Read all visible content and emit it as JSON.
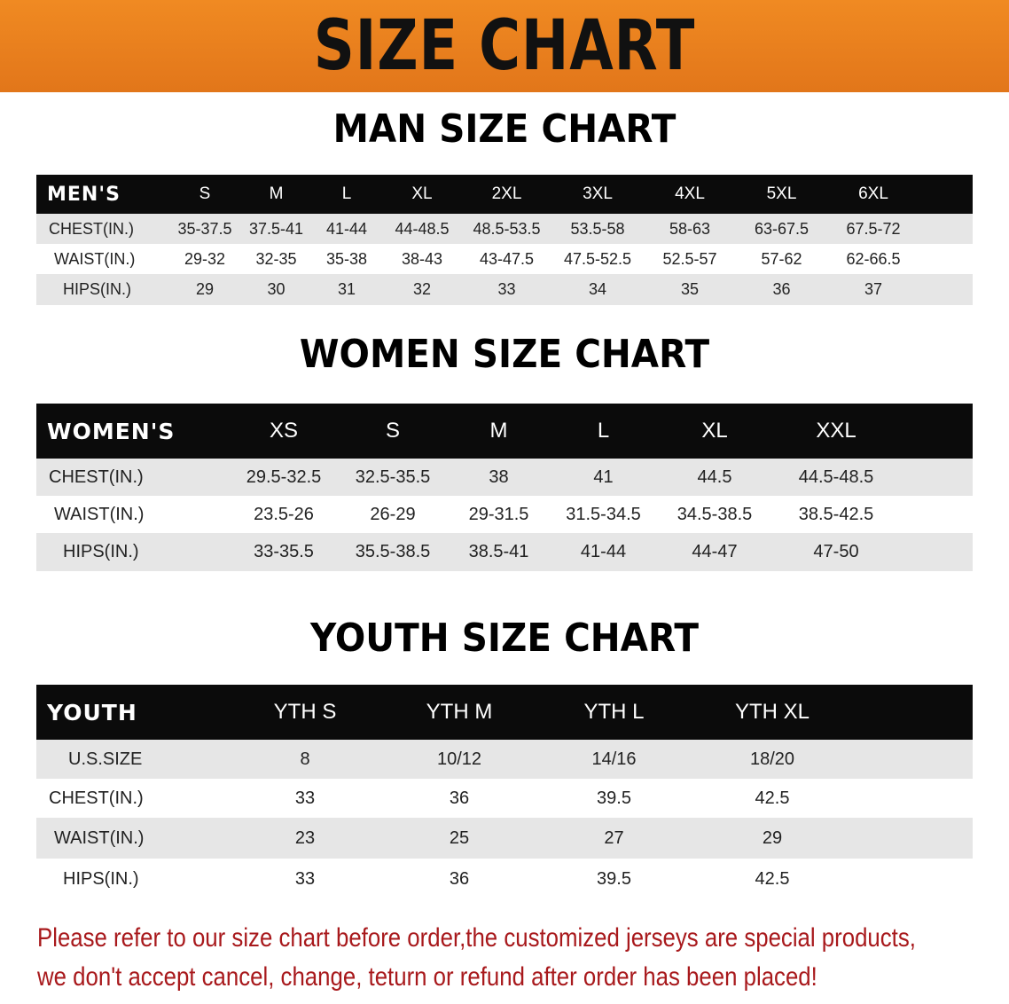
{
  "banner_title": "SIZE CHART",
  "men": {
    "title": "MAN SIZE CHART",
    "headers": [
      "MEN'S",
      "S",
      "M",
      "L",
      "XL",
      "2XL",
      "3XL",
      "4XL",
      "5XL",
      "6XL"
    ],
    "rows": [
      [
        "CHEST(IN.)",
        "35-37.5",
        "37.5-41",
        "41-44",
        "44-48.5",
        "48.5-53.5",
        "53.5-58",
        "58-63",
        "63-67.5",
        "67.5-72"
      ],
      [
        "WAIST(IN.)",
        "29-32",
        "32-35",
        "35-38",
        "38-43",
        "43-47.5",
        "47.5-52.5",
        "52.5-57",
        "57-62",
        "62-66.5"
      ],
      [
        "HIPS(IN.)",
        "29",
        "30",
        "31",
        "32",
        "33",
        "34",
        "35",
        "36",
        "37"
      ]
    ]
  },
  "women": {
    "title": "WOMEN SIZE CHART",
    "headers": [
      "WOMEN'S",
      "XS",
      "S",
      "M",
      "L",
      "XL",
      "XXL"
    ],
    "rows": [
      [
        "CHEST(IN.)",
        "29.5-32.5",
        "32.5-35.5",
        "38",
        "41",
        "44.5",
        "44.5-48.5"
      ],
      [
        "WAIST(IN.)",
        "23.5-26",
        "26-29",
        "29-31.5",
        "31.5-34.5",
        "34.5-38.5",
        "38.5-42.5"
      ],
      [
        "HIPS(IN.)",
        "33-35.5",
        "35.5-38.5",
        "38.5-41",
        "41-44",
        "44-47",
        "47-50"
      ]
    ]
  },
  "youth": {
    "title": "YOUTH SIZE CHART",
    "headers": [
      "YOUTH",
      "YTH S",
      "YTH M",
      "YTH L",
      "YTH XL"
    ],
    "rows": [
      [
        "U.S.SIZE",
        "8",
        "10/12",
        "14/16",
        "18/20"
      ],
      [
        "CHEST(IN.)",
        "33",
        "36",
        "39.5",
        "42.5"
      ],
      [
        "WAIST(IN.)",
        "23",
        "25",
        "27",
        "29"
      ],
      [
        "HIPS(IN.)",
        "33",
        "36",
        "39.5",
        "42.5"
      ]
    ]
  },
  "note": [
    "Please refer to our size chart before order,the customized jerseys are special products,",
    "we don't accept cancel, change, teturn or refund after order has been placed!"
  ],
  "colors": {
    "banner": "#e97f1e",
    "header": "#0b0b0b",
    "stripe": "#e6e6e6",
    "note": "#a8191c"
  }
}
